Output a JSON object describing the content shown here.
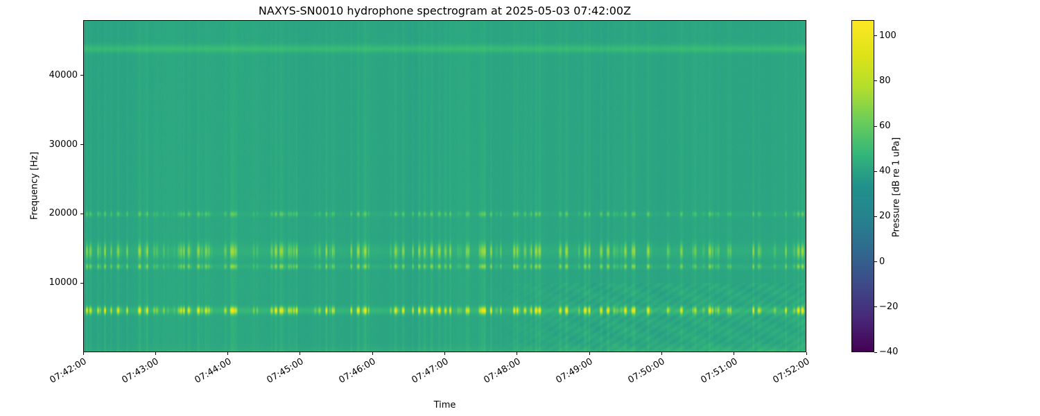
{
  "background": "#ffffff",
  "chart_data": {
    "type": "heatmap",
    "subtype": "spectrogram",
    "title": "NAXYS-SN0010 hydrophone spectrogram at 2025-05-03 07:42:00Z",
    "xlabel": "Time",
    "ylabel": "Frequency [Hz]",
    "x_ticks": [
      "07:42:00",
      "07:43:00",
      "07:44:00",
      "07:45:00",
      "07:46:00",
      "07:47:00",
      "07:48:00",
      "07:49:00",
      "07:50:00",
      "07:51:00",
      "07:52:00"
    ],
    "x_range_minutes": [
      0,
      10
    ],
    "ylim_hz": [
      0,
      48000
    ],
    "y_ticks": [
      {
        "value": 10000,
        "label": "10000"
      },
      {
        "value": 20000,
        "label": "20000"
      },
      {
        "value": 30000,
        "label": "30000"
      },
      {
        "value": 40000,
        "label": "40000"
      }
    ],
    "grid": false,
    "colorbar": {
      "label": "Pressure [dB re 1 uPa]",
      "vmin": -40,
      "vmax": 107,
      "ticks": [
        {
          "value": 100,
          "label": "100"
        },
        {
          "value": 80,
          "label": "80"
        },
        {
          "value": 60,
          "label": "60"
        },
        {
          "value": 40,
          "label": "40"
        },
        {
          "value": 20,
          "label": "20"
        },
        {
          "value": 0,
          "label": "0"
        },
        {
          "value": -20,
          "label": "−20"
        },
        {
          "value": -40,
          "label": "−40"
        }
      ],
      "colormap": "viridis",
      "colormap_stops": [
        "#440154",
        "#482878",
        "#3e4989",
        "#31688e",
        "#26828e",
        "#21918c",
        "#35b779",
        "#6dcd59",
        "#b4de2c",
        "#dfe318",
        "#fde725"
      ]
    },
    "background_level_db": 41,
    "features": {
      "horizontal_bands": [
        {
          "freq_hz": 6000,
          "width_hz": 700,
          "peak_db": 97,
          "speckle": true
        },
        {
          "freq_hz": 12400,
          "width_hz": 500,
          "peak_db": 68,
          "speckle": true
        },
        {
          "freq_hz": 14600,
          "width_hz": 1400,
          "peak_db": 70,
          "speckle": true
        },
        {
          "freq_hz": 20000,
          "width_hz": 500,
          "peak_db": 58,
          "speckle": true
        },
        {
          "freq_hz": 44000,
          "width_hz": 800,
          "peak_db": 49,
          "speckle": false
        }
      ],
      "vertical_transients": {
        "count": 150,
        "max_extra_db": 9,
        "description": "narrow broadband click striations throughout the record"
      },
      "strong_transient_minutes": [
        3.36,
        4.64,
        5.51,
        7.62
      ],
      "low_freq_texture": {
        "start_minute": 5.5,
        "max_freq_hz": 10000,
        "extra_db": 4,
        "description": "wavy mottled interference texture below 10 kHz in the second half"
      },
      "bottom_edge_glow": {
        "max_freq_hz": 1200,
        "extra_db": 5,
        "description": "brighter band along the bottom edge, strongest toward the right"
      }
    }
  }
}
